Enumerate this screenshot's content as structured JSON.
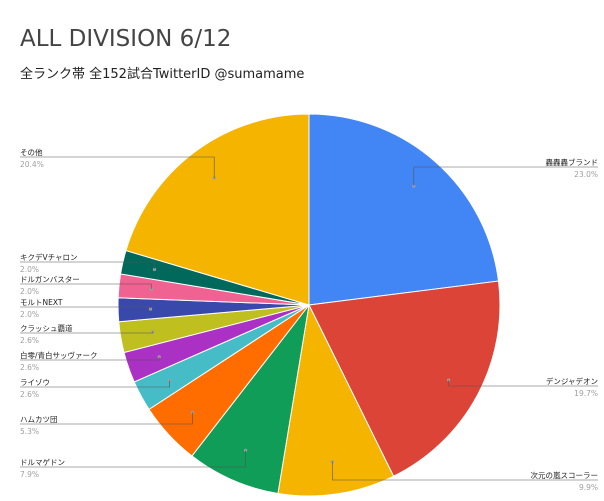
{
  "chart_data": {
    "type": "pie",
    "title": "ALL DIVISION 6/12",
    "subtitle": "全ランク帯 全152試合TwitterID @sumamame",
    "slices": [
      {
        "label": "轟轟轟ブランド",
        "value": 23.0,
        "pct_text": "23.0%",
        "color": "#4285f4"
      },
      {
        "label": "デンジャデオン",
        "value": 19.7,
        "pct_text": "19.7%",
        "color": "#db4437"
      },
      {
        "label": "次元の嵐スコーラー",
        "value": 9.9,
        "pct_text": "9.9%",
        "color": "#f4b400"
      },
      {
        "label": "ドルマゲドン",
        "value": 7.9,
        "pct_text": "7.9%",
        "color": "#0f9d58"
      },
      {
        "label": "ハムカツ団",
        "value": 5.3,
        "pct_text": "5.3%",
        "color": "#ff6d00"
      },
      {
        "label": "ライゾウ",
        "value": 2.6,
        "pct_text": "2.6%",
        "color": "#46bdc6"
      },
      {
        "label": "白零/青白サッヴァーク",
        "value": 2.6,
        "pct_text": "2.6%",
        "color": "#ab30c4"
      },
      {
        "label": "クラッシュ覇道",
        "value": 2.6,
        "pct_text": "2.6%",
        "color": "#bfbf20"
      },
      {
        "label": "モルトNEXT",
        "value": 2.0,
        "pct_text": "2.0%",
        "color": "#3949ab"
      },
      {
        "label": "ドルガンバスター",
        "value": 2.0,
        "pct_text": "2.0%",
        "color": "#f06292"
      },
      {
        "label": "キクデVチャロン",
        "value": 2.0,
        "pct_text": "2.0%",
        "color": "#00695c"
      },
      {
        "label": "その他",
        "value": 20.4,
        "pct_text": "20.4%",
        "color": "#f4b400"
      }
    ]
  }
}
